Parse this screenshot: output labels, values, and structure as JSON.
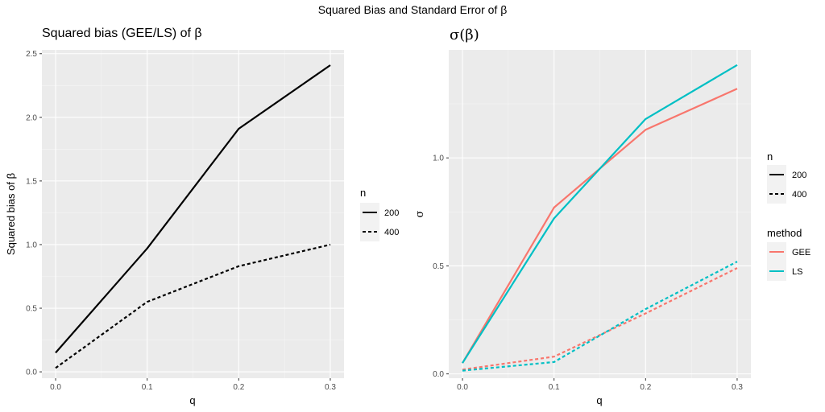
{
  "figure": {
    "title": "Squared Bias and Standard Error of β"
  },
  "chart_data": [
    {
      "type": "line",
      "title": "Squared bias (GEE/LS) of β",
      "xlabel": "q",
      "ylabel": "Squared bias of β",
      "x": [
        0.0,
        0.1,
        0.2,
        0.3
      ],
      "xlim": [
        -0.015,
        0.315
      ],
      "ylim": [
        -0.05,
        2.53
      ],
      "xticks": [
        0.0,
        0.1,
        0.2,
        0.3
      ],
      "xtick_labels": [
        "0.0",
        "0.1",
        "0.2",
        "0.3"
      ],
      "yticks": [
        0.0,
        0.5,
        1.0,
        1.5,
        2.0,
        2.5
      ],
      "ytick_labels": [
        "0.0",
        "0.5",
        "1.0",
        "1.5",
        "2.0",
        "2.5"
      ],
      "grid": true,
      "legend": {
        "placement": "right",
        "title": "n",
        "entries": [
          {
            "label": "200",
            "linetype": "solid"
          },
          {
            "label": "400",
            "linetype": "dashed"
          }
        ]
      },
      "series": [
        {
          "n": "200",
          "linetype": "solid",
          "color": "#000000",
          "values": [
            0.15,
            0.97,
            1.91,
            2.41
          ]
        },
        {
          "n": "400",
          "linetype": "dashed",
          "color": "#000000",
          "values": [
            0.03,
            0.55,
            0.83,
            1.0
          ]
        }
      ]
    },
    {
      "type": "line",
      "title": "σ(β)",
      "xlabel": "q",
      "ylabel": "σ",
      "x": [
        0.0,
        0.1,
        0.2,
        0.3
      ],
      "xlim": [
        -0.015,
        0.315
      ],
      "ylim": [
        -0.02,
        1.5
      ],
      "xticks": [
        0.0,
        0.1,
        0.2,
        0.3
      ],
      "xtick_labels": [
        "0.0",
        "0.1",
        "0.2",
        "0.3"
      ],
      "yticks": [
        0.0,
        0.5,
        1.0
      ],
      "ytick_labels": [
        "0.0",
        "0.5",
        "1.0"
      ],
      "grid": true,
      "legend": {
        "placement": "right",
        "groups": [
          {
            "title": "n",
            "entries": [
              {
                "label": "200",
                "linetype": "solid"
              },
              {
                "label": "400",
                "linetype": "dashed"
              }
            ]
          },
          {
            "title": "method",
            "entries": [
              {
                "label": "GEE",
                "color": "#F8766D"
              },
              {
                "label": "LS",
                "color": "#00BFC4"
              }
            ]
          }
        ]
      },
      "series": [
        {
          "method": "GEE",
          "n": "200",
          "linetype": "solid",
          "color": "#F8766D",
          "values": [
            0.05,
            0.77,
            1.13,
            1.32
          ]
        },
        {
          "method": "LS",
          "n": "200",
          "linetype": "solid",
          "color": "#00BFC4",
          "values": [
            0.05,
            0.72,
            1.18,
            1.43
          ]
        },
        {
          "method": "GEE",
          "n": "400",
          "linetype": "dashed",
          "color": "#F8766D",
          "values": [
            0.02,
            0.08,
            0.28,
            0.49
          ]
        },
        {
          "method": "LS",
          "n": "400",
          "linetype": "dashed",
          "color": "#00BFC4",
          "values": [
            0.015,
            0.055,
            0.3,
            0.52
          ]
        }
      ]
    }
  ]
}
